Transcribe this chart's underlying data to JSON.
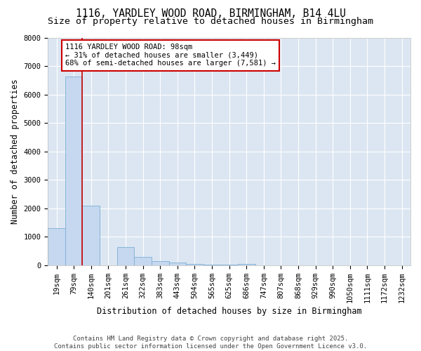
{
  "title_line1": "1116, YARDLEY WOOD ROAD, BIRMINGHAM, B14 4LU",
  "title_line2": "Size of property relative to detached houses in Birmingham",
  "xlabel": "Distribution of detached houses by size in Birmingham",
  "ylabel": "Number of detached properties",
  "categories": [
    "19sqm",
    "79sqm",
    "140sqm",
    "201sqm",
    "261sqm",
    "322sqm",
    "383sqm",
    "443sqm",
    "504sqm",
    "565sqm",
    "625sqm",
    "686sqm",
    "747sqm",
    "807sqm",
    "868sqm",
    "929sqm",
    "990sqm",
    "1050sqm",
    "1111sqm",
    "1172sqm",
    "1232sqm"
  ],
  "values": [
    1300,
    6650,
    2100,
    0,
    650,
    300,
    140,
    90,
    40,
    20,
    20,
    50,
    0,
    0,
    0,
    0,
    0,
    0,
    0,
    0,
    0
  ],
  "bar_color": "#c5d8ef",
  "bar_edge_color": "#7bafd4",
  "vline_x": 1.5,
  "vline_color": "#cc0000",
  "annotation_text": "1116 YARDLEY WOOD ROAD: 98sqm\n← 31% of detached houses are smaller (3,449)\n68% of semi-detached houses are larger (7,581) →",
  "annotation_box_color": "#ffffff",
  "annotation_box_edge_color": "#cc0000",
  "ylim": [
    0,
    8000
  ],
  "yticks": [
    0,
    1000,
    2000,
    3000,
    4000,
    5000,
    6000,
    7000,
    8000
  ],
  "grid_color": "#ffffff",
  "fig_bg_color": "#ffffff",
  "plot_bg_color": "#dce6f2",
  "footer_line1": "Contains HM Land Registry data © Crown copyright and database right 2025.",
  "footer_line2": "Contains public sector information licensed under the Open Government Licence v3.0.",
  "title_fontsize": 10.5,
  "subtitle_fontsize": 9.5,
  "axis_label_fontsize": 8.5,
  "tick_fontsize": 7.5,
  "annotation_fontsize": 7.5,
  "footer_fontsize": 6.5
}
